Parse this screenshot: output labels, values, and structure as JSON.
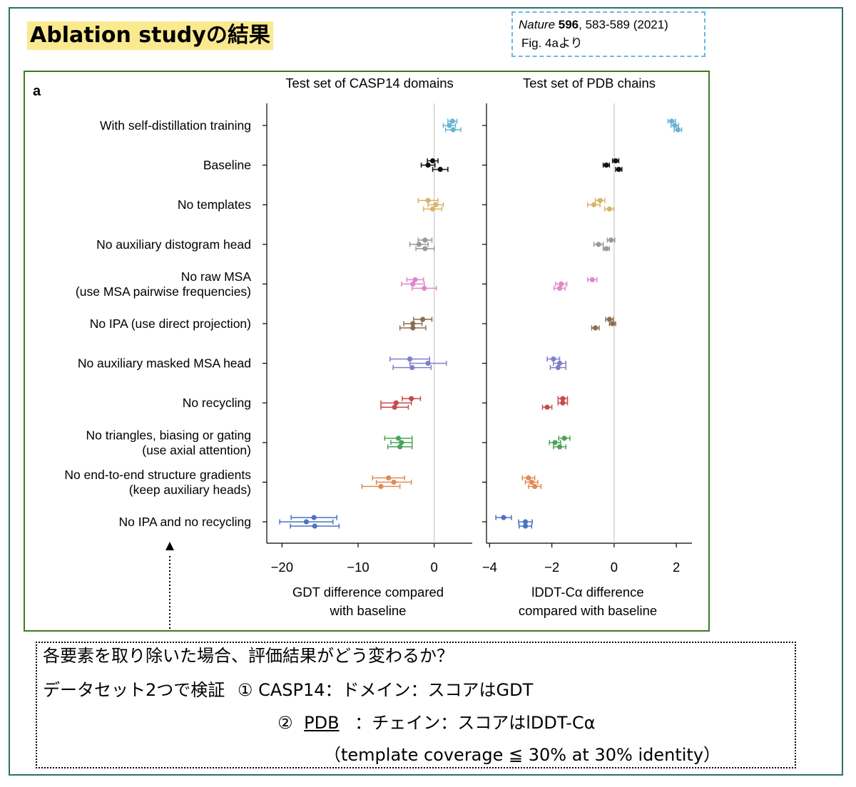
{
  "slide": {
    "title": "Ablation studyの結果"
  },
  "citation": {
    "journal": "Nature",
    "volume": "596",
    "pages_year": ", 583-589 (2021)",
    "figure_ref": "Fig. 4aより"
  },
  "figure": {
    "panel_label": "a"
  },
  "note": {
    "question": "各要素を取り除いた場合、評価結果がどう変わるか？",
    "line2_prefix": "データセット2つで検証",
    "line2_item": "① CASP14：ドメイン：スコアはGDT",
    "line3_num": "②",
    "line3_link": "PDB",
    "line3_rest": "：チェイン：スコアはlDDT-Cα",
    "line4": "（template coverage ≦ 30% at 30% identity）"
  },
  "chart_data": {
    "type": "scatter",
    "categories": [
      [
        "With self-distillation training"
      ],
      [
        "Baseline"
      ],
      [
        "No templates"
      ],
      [
        "No auxiliary distogram head"
      ],
      [
        "No raw MSA",
        "(use MSA pairwise frequencies)"
      ],
      [
        "No IPA (use direct projection)"
      ],
      [
        "No auxiliary masked MSA head"
      ],
      [
        "No recycling"
      ],
      [
        "No triangles, biasing or gating",
        "(use axial attention)"
      ],
      [
        "No end-to-end structure gradients",
        "(keep auxiliary heads)"
      ],
      [
        "No IPA and no recycling"
      ]
    ],
    "colors": [
      "#6ab4d2",
      "#111111",
      "#d6b46a",
      "#999999",
      "#dd88cc",
      "#8c6d4f",
      "#7f7fc8",
      "#c84a4a",
      "#4aa35a",
      "#e08a55",
      "#4a72c0"
    ],
    "panels": [
      {
        "title": "Test set of CASP14 domains",
        "xlabel": [
          "GDT difference compared",
          "with baseline"
        ],
        "xlim": [
          -22,
          5
        ],
        "xticks": [
          -20,
          -10,
          0
        ],
        "xticklabels": [
          "−20",
          "−10",
          "0"
        ],
        "points": [
          [
            [
              2.4,
              0.6
            ],
            [
              2.0,
              0.8
            ],
            [
              2.5,
              1.0
            ]
          ],
          [
            [
              -0.2,
              0.7
            ],
            [
              -0.8,
              0.9
            ],
            [
              0.8,
              1.0
            ]
          ],
          [
            [
              -0.8,
              1.3
            ],
            [
              0.2,
              1.0
            ],
            [
              -0.2,
              1.2
            ]
          ],
          [
            [
              -1.2,
              0.9
            ],
            [
              -2.0,
              1.2
            ],
            [
              -1.2,
              1.2
            ]
          ],
          [
            [
              -2.5,
              1.1
            ],
            [
              -2.8,
              1.5
            ],
            [
              -1.3,
              1.6
            ]
          ],
          [
            [
              -1.5,
              1.2
            ],
            [
              -2.8,
              1.2
            ],
            [
              -2.8,
              1.7
            ]
          ],
          [
            [
              -3.2,
              2.6
            ],
            [
              -0.8,
              2.4
            ],
            [
              -2.9,
              2.5
            ]
          ],
          [
            [
              -3.0,
              1.2
            ],
            [
              -5.0,
              2.0
            ],
            [
              -5.2,
              1.8
            ]
          ],
          [
            [
              -4.7,
              1.8
            ],
            [
              -4.3,
              1.4
            ],
            [
              -4.5,
              1.6
            ]
          ],
          [
            [
              -6.0,
              2.1
            ],
            [
              -5.3,
              2.3
            ],
            [
              -7.0,
              2.5
            ]
          ],
          [
            [
              -15.8,
              3.0
            ],
            [
              -16.8,
              3.5
            ],
            [
              -15.7,
              3.2
            ]
          ]
        ]
      },
      {
        "title": "Test set of PDB chains",
        "xlabel": [
          "lDDT-Cα difference",
          "compared with baseline"
        ],
        "xlim": [
          -4.1,
          2.5
        ],
        "xticks": [
          -4,
          -2,
          0,
          2
        ],
        "xticklabels": [
          "−4",
          "−2",
          "0",
          "2"
        ],
        "points": [
          [
            [
              1.85,
              0.12
            ],
            [
              1.95,
              0.12
            ],
            [
              2.05,
              0.12
            ]
          ],
          [
            [
              0.05,
              0.1
            ],
            [
              -0.25,
              0.1
            ],
            [
              0.15,
              0.1
            ]
          ],
          [
            [
              -0.45,
              0.15
            ],
            [
              -0.65,
              0.2
            ],
            [
              -0.15,
              0.15
            ]
          ],
          [
            [
              -0.1,
              0.12
            ],
            [
              -0.5,
              0.15
            ],
            [
              -0.25,
              0.1
            ]
          ],
          [
            [
              -0.7,
              0.15
            ],
            [
              -1.7,
              0.18
            ],
            [
              -1.75,
              0.18
            ]
          ],
          [
            [
              -0.15,
              0.12
            ],
            [
              -0.05,
              0.1
            ],
            [
              -0.6,
              0.12
            ]
          ],
          [
            [
              -1.95,
              0.2
            ],
            [
              -1.75,
              0.2
            ],
            [
              -1.8,
              0.25
            ]
          ],
          [
            [
              -1.65,
              0.15
            ],
            [
              -1.65,
              0.15
            ],
            [
              -2.15,
              0.15
            ]
          ],
          [
            [
              -1.6,
              0.18
            ],
            [
              -1.9,
              0.18
            ],
            [
              -1.75,
              0.2
            ]
          ],
          [
            [
              -2.75,
              0.2
            ],
            [
              -2.65,
              0.2
            ],
            [
              -2.55,
              0.2
            ]
          ],
          [
            [
              -3.55,
              0.25
            ],
            [
              -2.85,
              0.22
            ],
            [
              -2.85,
              0.2
            ]
          ]
        ]
      }
    ]
  }
}
